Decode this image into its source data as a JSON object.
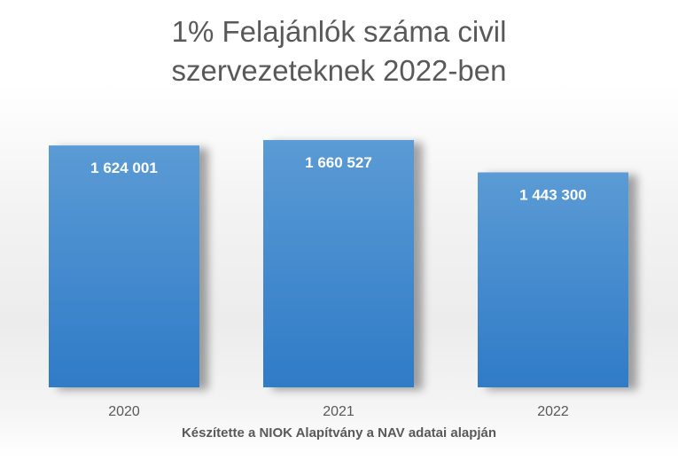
{
  "chart_data": {
    "type": "bar",
    "title_lines": [
      "1% Felajánlók száma civil",
      "szervezeteknek 2022-ben"
    ],
    "categories": [
      "2020",
      "2021",
      "2022"
    ],
    "values": [
      1624001,
      1660527,
      1443300
    ],
    "value_labels": [
      "1 624 001",
      "1 660 527",
      "1 443 300"
    ],
    "source_note": "Készítette a NIOK Alapítvány a NAV adatai alapján",
    "colors": {
      "bar_top": "#5b9bd5",
      "bar_bottom": "#2f7bc7",
      "label": "#ffffff",
      "text": "#595959"
    }
  }
}
